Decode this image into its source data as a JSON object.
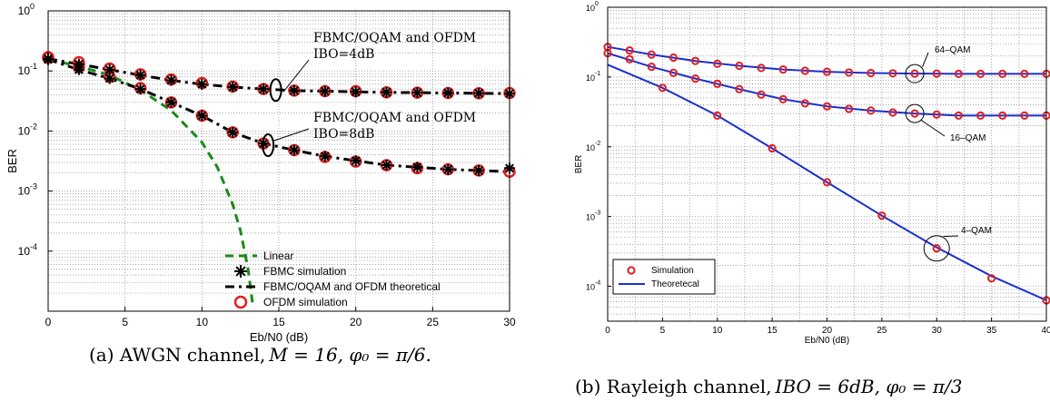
{
  "chart_data": [
    {
      "type": "line",
      "caption": {
        "prefix": "(a) AWGN channel,",
        "expr": "M = 16, φ₀ = π/6."
      },
      "xlabel": "Eb/N0 (dB)",
      "ylabel": "BER",
      "xlim": [
        0,
        30
      ],
      "ylim_log10": [
        -5,
        0
      ],
      "log_y": true,
      "grid": true,
      "x_ticks": [
        "0",
        "5",
        "10",
        "15",
        "20",
        "25",
        "30"
      ],
      "y_ticks": [
        {
          "base": "10",
          "exp": "0"
        },
        {
          "base": "10",
          "exp": "-1"
        },
        {
          "base": "10",
          "exp": "-2"
        },
        {
          "base": "10",
          "exp": "-3"
        },
        {
          "base": "10",
          "exp": "-4"
        }
      ],
      "legend_position": "bottom-right",
      "series": [
        {
          "name": "Linear",
          "style": "dashed",
          "color": "#1a8a1a",
          "x": [
            0,
            2,
            4,
            6,
            8,
            10,
            11,
            12,
            12.5,
            13,
            13.3
          ],
          "y": [
            0.155,
            0.12,
            0.085,
            0.048,
            0.022,
            0.0065,
            0.0025,
            0.0006,
            0.00022,
            5e-05,
            1.3e-05
          ]
        },
        {
          "name": "FBMC simulation",
          "style": "star",
          "color": "#000000",
          "x": [
            0,
            2,
            4,
            6,
            8,
            10,
            12,
            14,
            16,
            18,
            20,
            22,
            24,
            26,
            28,
            30,
            0,
            2,
            4,
            6,
            8,
            10,
            12,
            14,
            16,
            18,
            20,
            22,
            24,
            26,
            28,
            30
          ],
          "y": [
            0.16,
            0.13,
            0.105,
            0.085,
            0.07,
            0.06,
            0.054,
            0.05,
            0.047,
            0.046,
            0.045,
            0.044,
            0.0435,
            0.043,
            0.0425,
            0.042,
            0.155,
            0.105,
            0.075,
            0.05,
            0.03,
            0.018,
            0.0095,
            0.0062,
            0.0048,
            0.0038,
            0.0032,
            0.0027,
            0.0025,
            0.0023,
            0.0022,
            0.0024
          ]
        },
        {
          "name": "FBMC/OQAM and OFDM theoretical",
          "style": "dash-dot",
          "color": "#000000",
          "curves": [
            {
              "label": "IBO=4dB",
              "x": [
                0,
                2,
                4,
                6,
                8,
                10,
                12,
                14,
                16,
                18,
                20,
                22,
                24,
                26,
                28,
                30
              ],
              "y": [
                0.16,
                0.13,
                0.105,
                0.085,
                0.07,
                0.06,
                0.054,
                0.05,
                0.047,
                0.046,
                0.045,
                0.044,
                0.0435,
                0.043,
                0.0425,
                0.042
              ]
            },
            {
              "label": "IBO=8dB",
              "x": [
                0,
                2,
                4,
                6,
                8,
                10,
                12,
                14,
                16,
                18,
                20,
                22,
                24,
                26,
                28,
                30
              ],
              "y": [
                0.155,
                0.105,
                0.075,
                0.05,
                0.03,
                0.018,
                0.0095,
                0.0062,
                0.0048,
                0.0038,
                0.0032,
                0.0027,
                0.0025,
                0.0023,
                0.0022,
                0.0021
              ]
            }
          ]
        },
        {
          "name": "OFDM simulation",
          "style": "circle",
          "color": "#e02020",
          "x": [
            0,
            2,
            4,
            6,
            8,
            10,
            12,
            14,
            16,
            18,
            20,
            22,
            24,
            26,
            28,
            30,
            0,
            2,
            4,
            6,
            8,
            10,
            12,
            14,
            16,
            18,
            20,
            22,
            24,
            26,
            28,
            30
          ],
          "y": [
            0.17,
            0.14,
            0.11,
            0.088,
            0.072,
            0.063,
            0.055,
            0.05,
            0.047,
            0.046,
            0.046,
            0.044,
            0.0435,
            0.043,
            0.0425,
            0.043,
            0.165,
            0.115,
            0.08,
            0.052,
            0.03,
            0.018,
            0.0095,
            0.0062,
            0.0048,
            0.0037,
            0.0031,
            0.0027,
            0.0024,
            0.0023,
            0.0022,
            0.0021
          ]
        }
      ],
      "annotations": [
        {
          "text": [
            "FBMC/OQAM and OFDM",
            "IBO=4dB"
          ],
          "x": 15,
          "y": 0.048
        },
        {
          "text": [
            "FBMC/OQAM and OFDM",
            "IBO=8dB"
          ],
          "x": 14.3,
          "y": 0.006
        }
      ]
    },
    {
      "type": "line",
      "caption": {
        "prefix": "(b) Rayleigh channel,",
        "expr": "IBO = 6dB, φ₀ = π/3"
      },
      "xlabel": "Eb/N0 (dB)",
      "ylabel": "BER",
      "xlim": [
        0,
        40
      ],
      "ylim_log10": [
        -4.5,
        0
      ],
      "log_y": true,
      "grid": true,
      "x_ticks": [
        "0",
        "5",
        "10",
        "15",
        "20",
        "25",
        "30",
        "35",
        "40"
      ],
      "y_ticks": [
        {
          "base": "10",
          "exp": "0"
        },
        {
          "base": "10",
          "exp": "-1"
        },
        {
          "base": "10",
          "exp": "-2"
        },
        {
          "base": "10",
          "exp": "-3"
        },
        {
          "base": "10",
          "exp": "-4"
        }
      ],
      "legend_position": "bottom-left",
      "series": [
        {
          "name": "Simulation",
          "style": "circle",
          "color": "#e02020",
          "groups": [
            {
              "label": "64–QAM",
              "x": [
                0,
                2,
                4,
                6,
                8,
                10,
                12,
                14,
                16,
                18,
                20,
                22,
                24,
                26,
                28,
                30,
                32,
                34,
                36,
                38,
                40
              ],
              "y": [
                0.27,
                0.24,
                0.21,
                0.19,
                0.17,
                0.155,
                0.145,
                0.135,
                0.128,
                0.123,
                0.119,
                0.116,
                0.114,
                0.113,
                0.112,
                0.112,
                0.111,
                0.111,
                0.111,
                0.111,
                0.111
              ]
            },
            {
              "label": "16–QAM",
              "x": [
                0,
                2,
                4,
                6,
                8,
                10,
                12,
                14,
                16,
                18,
                20,
                22,
                24,
                26,
                28,
                30,
                32,
                34,
                36,
                38,
                40
              ],
              "y": [
                0.22,
                0.18,
                0.14,
                0.115,
                0.095,
                0.08,
                0.067,
                0.056,
                0.048,
                0.042,
                0.038,
                0.035,
                0.033,
                0.031,
                0.03,
                0.029,
                0.028,
                0.028,
                0.028,
                0.028,
                0.028
              ]
            },
            {
              "label": "4–QAM",
              "x": [
                5,
                10,
                15,
                20,
                25,
                30,
                35,
                40
              ],
              "y": [
                0.07,
                0.028,
                0.0095,
                0.0031,
                0.00103,
                0.00035,
                0.00013,
                6.3e-05
              ]
            }
          ]
        },
        {
          "name": "Theoretecal",
          "style": "solid",
          "color": "#1a2fd0",
          "curves": [
            {
              "x": [
                0,
                4,
                8,
                12,
                16,
                20,
                24,
                28,
                32,
                36,
                40
              ],
              "y": [
                0.27,
                0.21,
                0.17,
                0.145,
                0.128,
                0.119,
                0.114,
                0.112,
                0.111,
                0.111,
                0.111
              ]
            },
            {
              "x": [
                0,
                4,
                8,
                12,
                16,
                20,
                24,
                28,
                32,
                36,
                40
              ],
              "y": [
                0.22,
                0.14,
                0.095,
                0.067,
                0.048,
                0.038,
                0.033,
                0.03,
                0.028,
                0.028,
                0.028
              ]
            },
            {
              "x": [
                0,
                5,
                10,
                15,
                20,
                25,
                30,
                35,
                40
              ],
              "y": [
                0.15,
                0.07,
                0.028,
                0.0095,
                0.0031,
                0.00103,
                0.00036,
                0.00014,
                6.3e-05
              ]
            }
          ]
        }
      ],
      "annotations": [
        {
          "text": [
            "64–QAM"
          ],
          "x": 28,
          "y": 0.112
        },
        {
          "text": [
            "16–QAM"
          ],
          "x": 28,
          "y": 0.03
        },
        {
          "text": [
            "4–QAM"
          ],
          "x": 30,
          "y": 0.00035
        }
      ]
    }
  ]
}
